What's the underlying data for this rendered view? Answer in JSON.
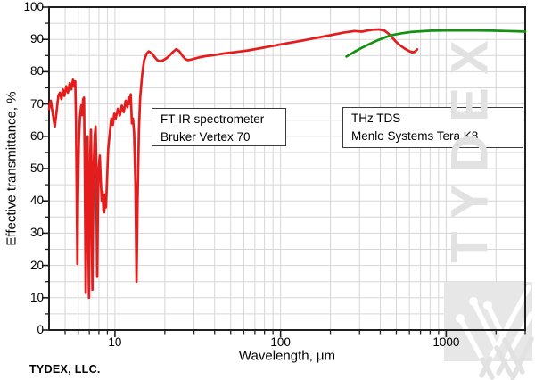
{
  "watermark": {
    "text": "TYDEX",
    "logo_icon": "tydex-w-logo",
    "color": "#e2e2e2"
  },
  "footer": {
    "company": "TYDEX, LLC."
  },
  "annotations": [
    {
      "id": "ftir",
      "lines": [
        "FT-IR spectrometer",
        "Bruker Vertex 70"
      ]
    },
    {
      "id": "thz",
      "lines": [
        "THz TDS",
        "Menlo Systems Tera K8"
      ]
    }
  ],
  "axes": {
    "x": {
      "label": "Wavelength, μm",
      "scale": "log",
      "min": 4,
      "max": 3000,
      "major_ticks": [
        10,
        100,
        1000
      ],
      "major_tick_labels": [
        "10",
        "100",
        "1000"
      ],
      "minor_ticks": [
        5,
        6,
        7,
        8,
        9,
        20,
        30,
        40,
        50,
        60,
        70,
        80,
        90,
        200,
        300,
        400,
        500,
        600,
        700,
        800,
        900,
        2000,
        3000
      ]
    },
    "y": {
      "label": "Effective transmittance, %",
      "min": 0,
      "max": 100,
      "major_ticks": [
        0,
        10,
        20,
        30,
        40,
        50,
        60,
        70,
        80,
        90,
        100
      ],
      "major_tick_labels": [
        "0",
        "10",
        "20",
        "30",
        "40",
        "50",
        "60",
        "70",
        "80",
        "90",
        "100"
      ],
      "minor_step": 5,
      "grid_step": 5
    }
  },
  "chart_data": {
    "type": "line",
    "xlabel": "Wavelength, μm",
    "ylabel": "Effective transmittance, %",
    "xscale": "log",
    "xlim": [
      4,
      3000
    ],
    "ylim": [
      0,
      100
    ],
    "grid": true,
    "series": [
      {
        "name": "FT-IR spectrometer Bruker Vertex 70",
        "color": "#e41c1c",
        "points": [
          [
            4.0,
            68.5
          ],
          [
            4.1,
            71
          ],
          [
            4.2,
            67.5
          ],
          [
            4.33,
            63
          ],
          [
            4.45,
            68
          ],
          [
            4.55,
            72.5
          ],
          [
            4.65,
            73.5
          ],
          [
            4.75,
            71.5
          ],
          [
            4.85,
            74.5
          ],
          [
            4.95,
            72.5
          ],
          [
            5.08,
            75.5
          ],
          [
            5.2,
            73.5
          ],
          [
            5.33,
            76.5
          ],
          [
            5.45,
            74.5
          ],
          [
            5.58,
            77.5
          ],
          [
            5.68,
            75.5
          ],
          [
            5.76,
            77
          ],
          [
            5.82,
            65
          ],
          [
            5.88,
            40
          ],
          [
            5.93,
            20.5
          ],
          [
            5.98,
            40
          ],
          [
            6.05,
            58
          ],
          [
            6.15,
            66
          ],
          [
            6.25,
            69.5
          ],
          [
            6.32,
            66.5
          ],
          [
            6.42,
            71.5
          ],
          [
            6.5,
            72
          ],
          [
            6.56,
            55
          ],
          [
            6.62,
            30
          ],
          [
            6.66,
            11.5
          ],
          [
            6.72,
            35
          ],
          [
            6.78,
            55
          ],
          [
            6.83,
            60
          ],
          [
            6.88,
            45
          ],
          [
            6.93,
            22
          ],
          [
            6.97,
            10
          ],
          [
            7.03,
            32
          ],
          [
            7.1,
            55
          ],
          [
            7.16,
            62
          ],
          [
            7.22,
            50
          ],
          [
            7.27,
            25
          ],
          [
            7.31,
            12.5
          ],
          [
            7.37,
            32
          ],
          [
            7.45,
            52
          ],
          [
            7.55,
            60
          ],
          [
            7.64,
            63
          ],
          [
            7.7,
            55
          ],
          [
            7.76,
            30
          ],
          [
            7.81,
            16.5
          ],
          [
            7.88,
            35
          ],
          [
            7.97,
            50
          ],
          [
            8.1,
            54
          ],
          [
            8.2,
            47
          ],
          [
            8.32,
            40
          ],
          [
            8.42,
            43
          ],
          [
            8.52,
            37
          ],
          [
            8.62,
            36.5
          ],
          [
            8.72,
            42
          ],
          [
            8.82,
            38
          ],
          [
            8.95,
            46
          ],
          [
            9.1,
            56
          ],
          [
            9.3,
            61
          ],
          [
            9.5,
            65.5
          ],
          [
            9.7,
            63.5
          ],
          [
            9.9,
            67
          ],
          [
            10.1,
            65.5
          ],
          [
            10.4,
            68.5
          ],
          [
            10.7,
            66.5
          ],
          [
            11.0,
            69.5
          ],
          [
            11.3,
            67.5
          ],
          [
            11.6,
            71
          ],
          [
            11.9,
            69
          ],
          [
            12.1,
            72
          ],
          [
            12.3,
            70
          ],
          [
            12.45,
            73
          ],
          [
            12.65,
            64
          ],
          [
            12.85,
            65.5
          ],
          [
            13.05,
            61
          ],
          [
            13.3,
            45
          ],
          [
            13.5,
            15
          ],
          [
            13.7,
            40
          ],
          [
            13.95,
            62
          ],
          [
            14.2,
            72
          ],
          [
            14.6,
            79
          ],
          [
            15.0,
            83.5
          ],
          [
            15.5,
            85.5
          ],
          [
            16.0,
            86.3
          ],
          [
            16.6,
            85.8
          ],
          [
            17.2,
            84.8
          ],
          [
            18.0,
            83.6
          ],
          [
            18.7,
            83.2
          ],
          [
            19.5,
            83.5
          ],
          [
            20.5,
            84.2
          ],
          [
            21.5,
            85.2
          ],
          [
            22.5,
            86.2
          ],
          [
            23.5,
            87
          ],
          [
            24.5,
            86.3
          ],
          [
            25.5,
            85
          ],
          [
            26.5,
            84
          ],
          [
            27.5,
            83.6
          ],
          [
            28.5,
            83.7
          ],
          [
            30,
            84
          ],
          [
            32,
            84.4
          ],
          [
            35,
            84.8
          ],
          [
            40,
            85.2
          ],
          [
            46,
            85.7
          ],
          [
            54,
            86.1
          ],
          [
            64,
            86.6
          ],
          [
            76,
            87.3
          ],
          [
            90,
            88
          ],
          [
            110,
            88.8
          ],
          [
            135,
            89.6
          ],
          [
            165,
            90.5
          ],
          [
            200,
            91.3
          ],
          [
            240,
            92.1
          ],
          [
            280,
            92.6
          ],
          [
            310,
            92.4
          ],
          [
            330,
            92.7
          ],
          [
            360,
            93
          ],
          [
            395,
            93.1
          ],
          [
            425,
            92.7
          ],
          [
            448,
            91.8
          ],
          [
            470,
            90.7
          ],
          [
            495,
            89.4
          ],
          [
            525,
            88.2
          ],
          [
            560,
            87.2
          ],
          [
            595,
            86.4
          ],
          [
            625,
            86.0
          ],
          [
            650,
            86.2
          ],
          [
            668,
            86.9
          ]
        ]
      },
      {
        "name": "THz TDS Menlo Systems Tera K8",
        "color": "#119311",
        "points": [
          [
            250,
            84.7
          ],
          [
            280,
            86.2
          ],
          [
            310,
            87.4
          ],
          [
            345,
            88.6
          ],
          [
            385,
            89.7
          ],
          [
            430,
            90.7
          ],
          [
            480,
            91.4
          ],
          [
            540,
            91.9
          ],
          [
            610,
            92.3
          ],
          [
            700,
            92.5
          ],
          [
            820,
            92.7
          ],
          [
            1000,
            92.8
          ],
          [
            1250,
            92.8
          ],
          [
            1550,
            92.8
          ],
          [
            1900,
            92.7
          ],
          [
            2300,
            92.6
          ],
          [
            2700,
            92.5
          ],
          [
            3000,
            92.4
          ]
        ]
      }
    ]
  }
}
